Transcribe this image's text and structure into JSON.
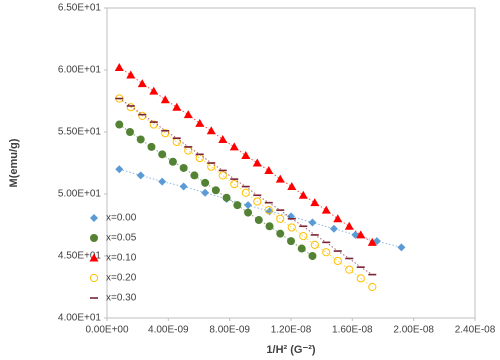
{
  "chart_data": {
    "type": "scatter",
    "x_label": "1/H² (G⁻²)",
    "y_label": "M(emu/g)",
    "xlim": [
      0,
      2.4e-08
    ],
    "ylim": [
      40,
      65
    ],
    "xticks": [
      {
        "value": 0,
        "label": "0.00E+00"
      },
      {
        "value": 4e-09,
        "label": "4.00E-09"
      },
      {
        "value": 8e-09,
        "label": "8.00E-09"
      },
      {
        "value": 1.2e-08,
        "label": "1.20E-08"
      },
      {
        "value": 1.6e-08,
        "label": "1.60E-08"
      },
      {
        "value": 2e-08,
        "label": "2.00E-08"
      },
      {
        "value": 2.4e-08,
        "label": "2.40E-08"
      }
    ],
    "yticks": [
      {
        "value": 40,
        "label": "4.00E+01"
      },
      {
        "value": 45,
        "label": "4.50E+01"
      },
      {
        "value": 50,
        "label": "5.00E+01"
      },
      {
        "value": 55,
        "label": "5.50E+01"
      },
      {
        "value": 60,
        "label": "6.00E+01"
      },
      {
        "value": 65,
        "label": "6.50E+01"
      }
    ],
    "grid": false,
    "legend": "lower left",
    "series": [
      {
        "name": "x=0.00",
        "color": "#5b9bd5",
        "marker": "diamond",
        "x": [
          8e-10,
          2.2e-09,
          3.6e-09,
          5e-09,
          6.4e-09,
          7.8e-09,
          9.2e-09,
          1.06e-08,
          1.2e-08,
          1.34e-08,
          1.48e-08,
          1.62e-08,
          1.76e-08,
          1.92e-08
        ],
        "values": [
          52.0,
          51.5,
          51.0,
          50.6,
          50.1,
          49.6,
          49.1,
          48.6,
          48.2,
          47.7,
          47.2,
          46.7,
          46.2,
          45.7
        ]
      },
      {
        "name": "x=0.05",
        "color": "#548235",
        "marker": "circle",
        "x": [
          8e-10,
          1.5e-09,
          2.2e-09,
          2.9e-09,
          3.6e-09,
          4.3e-09,
          5e-09,
          5.7e-09,
          6.4e-09,
          7.1e-09,
          7.8e-09,
          8.5e-09,
          9.2e-09,
          9.9e-09,
          1.06e-08,
          1.13e-08,
          1.2e-08,
          1.27e-08,
          1.34e-08
        ],
        "values": [
          55.6,
          55.0,
          54.4,
          53.8,
          53.2,
          52.6,
          52.1,
          51.5,
          50.9,
          50.3,
          49.7,
          49.1,
          48.5,
          47.9,
          47.4,
          46.8,
          46.2,
          45.6,
          45.0
        ]
      },
      {
        "name": "x=0.10",
        "color": "#ff0000",
        "marker": "triangle",
        "x": [
          8e-10,
          1.55e-09,
          2.3e-09,
          3.05e-09,
          3.8e-09,
          4.55e-09,
          5.3e-09,
          6.05e-09,
          6.8e-09,
          7.55e-09,
          8.3e-09,
          9.05e-09,
          9.8e-09,
          1.055e-08,
          1.13e-08,
          1.205e-08,
          1.28e-08,
          1.355e-08,
          1.43e-08,
          1.505e-08,
          1.58e-08,
          1.655e-08,
          1.73e-08
        ],
        "values": [
          60.2,
          59.6,
          58.9,
          58.3,
          57.6,
          57.0,
          56.4,
          55.7,
          55.1,
          54.4,
          53.8,
          53.1,
          52.5,
          51.9,
          51.2,
          50.6,
          49.9,
          49.3,
          48.7,
          48.0,
          47.4,
          46.7,
          46.1
        ]
      },
      {
        "name": "x=0.20",
        "color": "#ffc000",
        "marker": "circle-open",
        "x": [
          8e-10,
          1.55e-09,
          2.3e-09,
          3.05e-09,
          3.8e-09,
          4.55e-09,
          5.3e-09,
          6.05e-09,
          6.8e-09,
          7.55e-09,
          8.3e-09,
          9.05e-09,
          9.8e-09,
          1.055e-08,
          1.13e-08,
          1.205e-08,
          1.28e-08,
          1.355e-08,
          1.43e-08,
          1.505e-08,
          1.58e-08,
          1.655e-08,
          1.73e-08
        ],
        "values": [
          57.7,
          57.0,
          56.3,
          55.6,
          54.9,
          54.2,
          53.5,
          52.9,
          52.2,
          51.5,
          50.8,
          50.1,
          49.4,
          48.7,
          48.0,
          47.3,
          46.6,
          45.9,
          45.3,
          44.6,
          43.9,
          43.2,
          42.5
        ]
      },
      {
        "name": "x=0.30",
        "color": "#7b2335",
        "marker": "dash",
        "x": [
          8e-10,
          1.55e-09,
          2.3e-09,
          3.05e-09,
          3.8e-09,
          4.55e-09,
          5.3e-09,
          6.05e-09,
          6.8e-09,
          7.55e-09,
          8.3e-09,
          9.05e-09,
          9.8e-09,
          1.055e-08,
          1.13e-08,
          1.205e-08,
          1.28e-08,
          1.355e-08,
          1.43e-08,
          1.505e-08,
          1.58e-08,
          1.655e-08,
          1.73e-08
        ],
        "values": [
          57.7,
          57.1,
          56.4,
          55.8,
          55.1,
          54.5,
          53.8,
          53.2,
          52.5,
          51.9,
          51.2,
          50.6,
          49.9,
          49.3,
          48.7,
          48.0,
          47.4,
          46.7,
          46.1,
          45.4,
          44.8,
          44.1,
          43.5
        ]
      }
    ]
  }
}
